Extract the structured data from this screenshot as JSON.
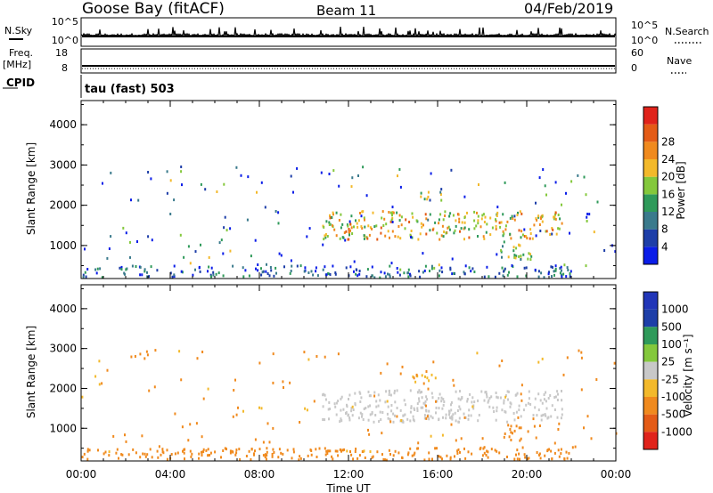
{
  "header": {
    "station": "Goose Bay (fitACF)",
    "beam": "Beam 11",
    "date": "04/Feb/2019"
  },
  "strips": {
    "nsky_label": "N.Sky",
    "nsky_ticks": [
      "10^5",
      "10^0"
    ],
    "nsearch_label": "N.Search",
    "nsearch_ticks": [
      "10^5",
      "10^0"
    ],
    "freq_label": "Freq.",
    "freq_unit": "[MHz]",
    "freq_ticks": [
      "18",
      "8"
    ],
    "nave_label": "Nave",
    "nave_ticks": [
      "60",
      "0"
    ],
    "cpid_label": "CPID",
    "cpid_text": "tau (fast) 503"
  },
  "colors": {
    "power_scale": [
      "#0a1de8",
      "#1d3ea8",
      "#3a7a8c",
      "#2f9a5a",
      "#84c83c",
      "#f3b92b",
      "#f08a1e",
      "#e45b16",
      "#e0231b"
    ],
    "velocity_scale": [
      "#e0231b",
      "#e45b16",
      "#f08a1e",
      "#f3b92b",
      "#c8c8c8",
      "#84c83c",
      "#2f9a5a",
      "#1d3ea8",
      "#2236b8"
    ]
  },
  "chart_data": [
    {
      "type": "heatmap",
      "panel": "power",
      "xlabel": "Time UT",
      "ylabel": "Slant Range [km]",
      "xticks": [
        "00:00",
        "04:00",
        "08:00",
        "12:00",
        "16:00",
        "20:00",
        "00:00"
      ],
      "xlim_hours": [
        0,
        24
      ],
      "yticks": [
        "1000",
        "2000",
        "3000",
        "4000"
      ],
      "ylim": [
        180,
        4600
      ],
      "colorbar_label": "Power [dB]",
      "colorbar_ticks": [
        "4",
        "8",
        "12",
        "16",
        "20",
        "24",
        "28"
      ],
      "colorbar_range": [
        0,
        30
      ],
      "regions": [
        {
          "t0": 10.8,
          "t1": 21.6,
          "r0": 1150,
          "r1": 1850,
          "level": 18,
          "desc": "main scatter band"
        },
        {
          "t0": 14.8,
          "t1": 16.2,
          "r0": 2150,
          "r1": 2350,
          "level": 16
        },
        {
          "t0": 0.0,
          "t1": 22.0,
          "r0": 200,
          "r1": 500,
          "level": 6
        },
        {
          "t0": 18.8,
          "t1": 20.2,
          "r0": 650,
          "r1": 1100,
          "level": 14
        }
      ]
    },
    {
      "type": "heatmap",
      "panel": "velocity",
      "xlabel": "Time UT",
      "ylabel": "Slant Range [km]",
      "xticks": [
        "00:00",
        "04:00",
        "08:00",
        "12:00",
        "16:00",
        "20:00",
        "00:00"
      ],
      "xlim_hours": [
        0,
        24
      ],
      "yticks": [
        "1000",
        "2000",
        "3000",
        "4000"
      ],
      "ylim": [
        180,
        4600
      ],
      "colorbar_label": "Velocity [m s⁻¹]",
      "colorbar_ticks": [
        "1000",
        "500",
        "100",
        "25",
        "-25",
        "-100",
        "-500",
        "-1000"
      ],
      "regions": [
        {
          "t0": 10.8,
          "t1": 21.6,
          "r0": 1150,
          "r1": 1950,
          "velocity": 0,
          "desc": "ground scatter band"
        },
        {
          "t0": 14.8,
          "t1": 16.2,
          "r0": 2150,
          "r1": 2350,
          "velocity": -80
        },
        {
          "t0": 0.0,
          "t1": 22.0,
          "r0": 200,
          "r1": 500,
          "velocity": -120
        },
        {
          "t0": 18.8,
          "t1": 20.2,
          "r0": 650,
          "r1": 1100,
          "velocity": -200
        }
      ]
    }
  ]
}
